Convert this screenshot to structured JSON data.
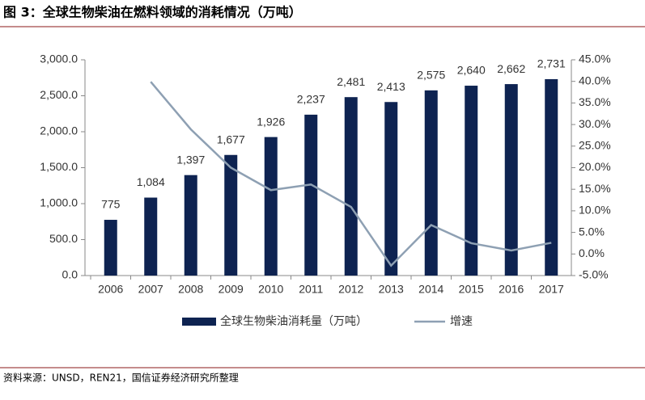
{
  "header": {
    "title": "图 3：全球生物柴油在燃料领域的消耗情况（万吨）"
  },
  "chart_data": {
    "type": "bar-line",
    "categories": [
      "2006",
      "2007",
      "2008",
      "2009",
      "2010",
      "2011",
      "2012",
      "2013",
      "2014",
      "2015",
      "2016",
      "2017"
    ],
    "series": [
      {
        "name": "全球生物柴油消耗量（万吨）",
        "type": "bar",
        "color": "#0e2351",
        "values": [
          775,
          1084,
          1397,
          1677,
          1926,
          2237,
          2481,
          2413,
          2575,
          2640,
          2662,
          2731
        ],
        "value_labels": [
          "775",
          "1,084",
          "1,397",
          "1,677",
          "1,926",
          "2,237",
          "2,481",
          "2,413",
          "2,575",
          "2,640",
          "2,662",
          "2,731"
        ]
      },
      {
        "name": "增速",
        "type": "line",
        "axis": "y2",
        "color": "#8ea0b3",
        "values": [
          null,
          39.9,
          28.9,
          20.0,
          14.8,
          16.1,
          10.9,
          -2.7,
          6.7,
          2.5,
          0.8,
          2.6
        ]
      }
    ],
    "ylim": [
      0,
      3000
    ],
    "yticks": [
      {
        "value": 0,
        "label": "0.0"
      },
      {
        "value": 500,
        "label": "500.0"
      },
      {
        "value": 1000,
        "label": "1,000.0"
      },
      {
        "value": 1500,
        "label": "1,500.0"
      },
      {
        "value": 2000,
        "label": "2,000.0"
      },
      {
        "value": 2500,
        "label": "2,500.0"
      },
      {
        "value": 3000,
        "label": "3,000.0"
      }
    ],
    "y2lim": [
      -5,
      45
    ],
    "y2ticks": [
      {
        "value": -5,
        "label": "-5.0%"
      },
      {
        "value": 0,
        "label": "0.0%"
      },
      {
        "value": 5,
        "label": "5.0%"
      },
      {
        "value": 10,
        "label": "10.0%"
      },
      {
        "value": 15,
        "label": "15.0%"
      },
      {
        "value": 20,
        "label": "20.0%"
      },
      {
        "value": 25,
        "label": "25.0%"
      },
      {
        "value": 30,
        "label": "30.0%"
      },
      {
        "value": 35,
        "label": "35.0%"
      },
      {
        "value": 40,
        "label": "40.0%"
      },
      {
        "value": 45,
        "label": "45.0%"
      }
    ],
    "legend": "bottom"
  },
  "footer": {
    "source": "资料来源：UNSD，REN21，国信证券经济研究所整理"
  }
}
